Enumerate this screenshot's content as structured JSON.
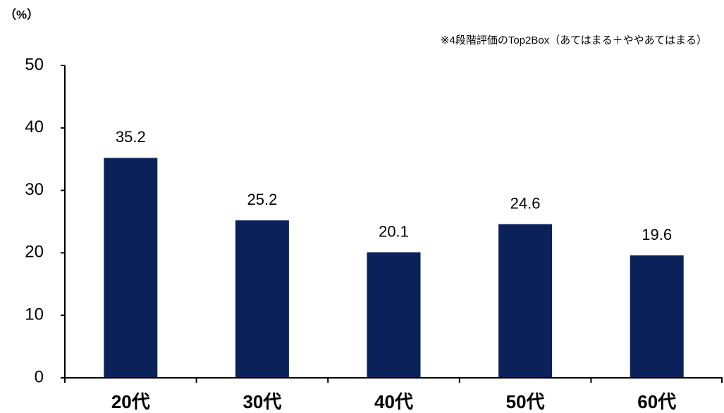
{
  "chart_data": {
    "type": "bar",
    "unit_label": "（%）",
    "note": "※4段階評価のTop2Box（あてはまる＋ややあてはまる）",
    "categories": [
      "20代",
      "30代",
      "40代",
      "50代",
      "60代"
    ],
    "values": [
      35.2,
      25.2,
      20.1,
      24.6,
      19.6
    ],
    "color": "#0b2159",
    "ylim": [
      0,
      50
    ],
    "yticks": [
      0,
      10,
      20,
      30,
      40,
      50
    ],
    "grid": false
  }
}
